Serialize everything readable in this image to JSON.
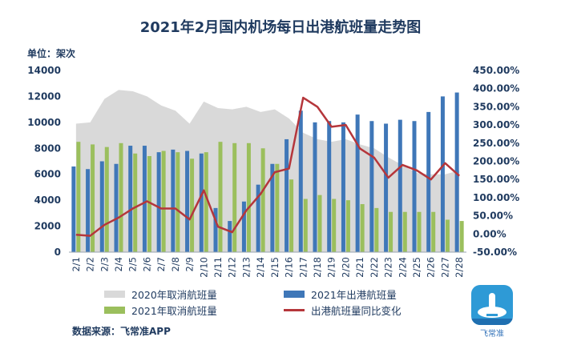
{
  "title": "2021年2月国内机场每日出港航班量走势图",
  "unit": "单位：架次",
  "source": "数据来源：飞常准APP",
  "logo_text": "飞常准",
  "colors": {
    "area_2020": "#d9d9d9",
    "bar_2021_departures": "#3f77b8",
    "bar_2021_cancelled": "#9bbf5d",
    "line_yoy": "#b5363b",
    "text": "#1f3a5f",
    "logo": "#2e9ad6"
  },
  "chart_data": {
    "type": "bar",
    "title": "2021年2月国内机场每日出港航班量走势图",
    "categories": [
      "2/1",
      "2/2",
      "2/3",
      "2/4",
      "2/5",
      "2/6",
      "2/7",
      "2/8",
      "2/9",
      "2/10",
      "2/11",
      "2/12",
      "2/13",
      "2/14",
      "2/15",
      "2/16",
      "2/17",
      "2/18",
      "2/19",
      "2/20",
      "2/21",
      "2/22",
      "2/23",
      "2/24",
      "2/25",
      "2/26",
      "2/27",
      "2/28"
    ],
    "y_left": {
      "min": 0,
      "max": 14000,
      "ticks": [
        "0",
        "2000",
        "4000",
        "6000",
        "8000",
        "10000",
        "12000",
        "14000"
      ]
    },
    "y_right": {
      "min": -50,
      "max": 450,
      "ticks": [
        "-50.00%",
        "0.00%",
        "50.00%",
        "100.00%",
        "150.00%",
        "200.00%",
        "250.00%",
        "300.00%",
        "350.00%",
        "400.00%",
        "450.00%"
      ]
    },
    "series": [
      {
        "name": "2020年取消航班量",
        "kind": "area",
        "axis": "left",
        "values": [
          9900,
          10000,
          11800,
          12500,
          12400,
          12000,
          11300,
          10900,
          9900,
          11600,
          11100,
          11000,
          11200,
          10800,
          11000,
          10300,
          9200,
          8700,
          8500,
          8700,
          8300,
          8000,
          7300,
          6700,
          6100,
          6000,
          6000,
          6300
        ]
      },
      {
        "name": "2021年出港航班量",
        "kind": "bar",
        "axis": "left",
        "values": [
          6600,
          6400,
          7000,
          6800,
          8200,
          8200,
          7700,
          7900,
          7800,
          7600,
          3400,
          2400,
          3900,
          5200,
          6800,
          8700,
          10900,
          10000,
          10100,
          10000,
          10600,
          10100,
          9900,
          10200,
          10100,
          10800,
          12000,
          12300
        ]
      },
      {
        "name": "2021年取消航班量",
        "kind": "bar",
        "axis": "left",
        "values": [
          8500,
          8300,
          8100,
          8400,
          7600,
          7400,
          7800,
          7700,
          7200,
          7700,
          8500,
          8400,
          8400,
          8000,
          6800,
          5600,
          4100,
          4400,
          4100,
          4000,
          3700,
          3400,
          3100,
          3100,
          3100,
          3100,
          2500,
          2400
        ]
      },
      {
        "name": "出港航班量同比变化",
        "kind": "line",
        "axis": "right",
        "values": [
          -2,
          -5,
          25,
          45,
          70,
          90,
          70,
          70,
          40,
          120,
          20,
          5,
          65,
          110,
          170,
          180,
          375,
          350,
          295,
          300,
          235,
          210,
          155,
          190,
          175,
          150,
          195,
          160
        ]
      }
    ],
    "legend": "bottom"
  }
}
